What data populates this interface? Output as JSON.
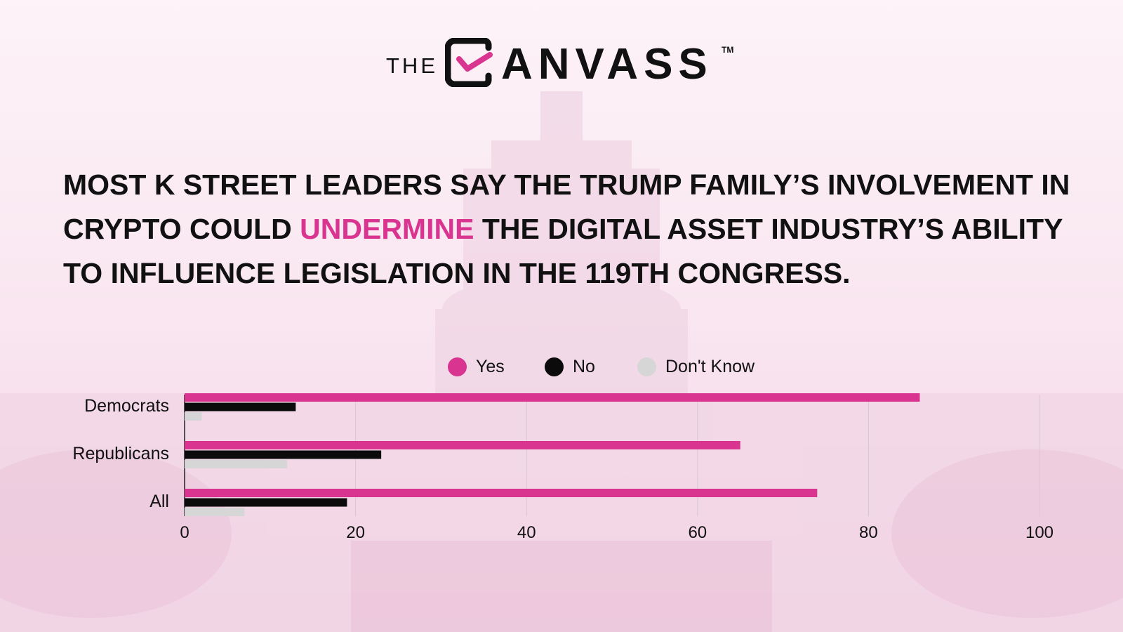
{
  "logo": {
    "prefix": "THE",
    "word": "ANVASS",
    "tm": "TM"
  },
  "headline": {
    "part1": "MOST K STREET LEADERS SAY THE TRUMP FAMILY’S INVOLVEMENT IN CRYPTO COULD ",
    "highlight": "UNDERMINE",
    "part2": " THE DIGITAL ASSET INDUSTRY’S ABILITY TO INFLUENCE LEGISLATION IN THE 119TH CONGRESS."
  },
  "colors": {
    "yes": "#d9348f",
    "no": "#0b0b0b",
    "dont_know": "#d6d6d6",
    "accent": "#d9348f",
    "background": "#fbeef5"
  },
  "icons": [
    "check-box-icon"
  ],
  "chart_data": {
    "type": "bar",
    "orientation": "horizontal",
    "categories": [
      "Democrats",
      "Republicans",
      "All"
    ],
    "series": [
      {
        "name": "Yes",
        "values": [
          86,
          65,
          74
        ]
      },
      {
        "name": "No",
        "values": [
          13,
          23,
          19
        ]
      },
      {
        "name": "Don't Know",
        "values": [
          2,
          12,
          7
        ]
      }
    ],
    "xlim": [
      0,
      100
    ],
    "xticks": [
      "0",
      "20",
      "40",
      "60",
      "80",
      "100"
    ],
    "legend": "top-center",
    "grid": true
  }
}
